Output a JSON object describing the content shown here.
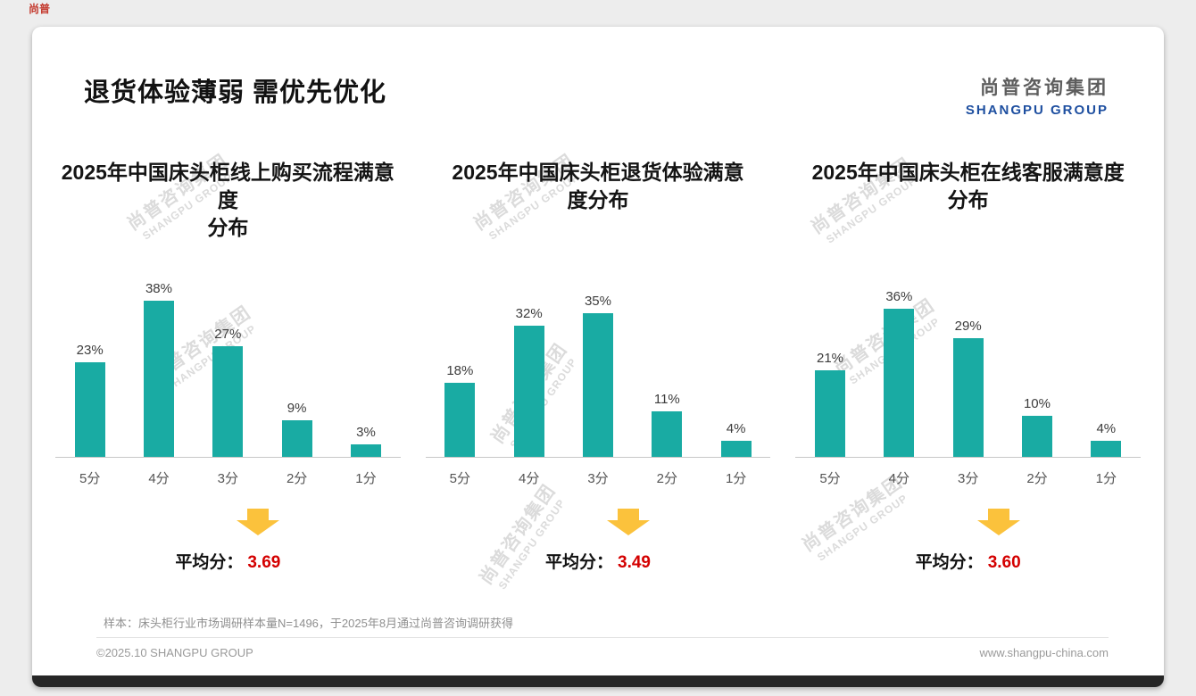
{
  "page": {
    "title": "退货体验薄弱 需优先优化",
    "logo": {
      "cn": "尚普咨询集团",
      "en": "SHANGPU GROUP"
    },
    "watermark": {
      "cn": "尚普咨询集团",
      "en": "SHANGPU GROUP"
    },
    "footnote": "样本：床头柜行业市场调研样本量N=1496，于2025年8月通过尚普咨询调研获得",
    "footer_left": "©2025.10 SHANGPU GROUP",
    "footer_right": "www.shangpu-china.com"
  },
  "colors": {
    "bar_teal": "#19aba3",
    "average_red": "#d40000",
    "arrow_yellow": "#fbc23c",
    "logo_blue": "#1e4fa0"
  },
  "chart_data": [
    {
      "type": "bar",
      "title": "2025年中国床头柜线上购买流程满意度\n分布",
      "categories": [
        "5分",
        "4分",
        "3分",
        "2分",
        "1分"
      ],
      "values": [
        23,
        38,
        27,
        9,
        3
      ],
      "value_labels": [
        "23%",
        "38%",
        "27%",
        "9%",
        "3%"
      ],
      "average_label": "平均分：",
      "average": "3.69",
      "ylim": [
        0,
        40
      ],
      "grid": false,
      "legend": false
    },
    {
      "type": "bar",
      "title": "2025年中国床头柜退货体验满意\n度分布",
      "categories": [
        "5分",
        "4分",
        "3分",
        "2分",
        "1分"
      ],
      "values": [
        18,
        32,
        35,
        11,
        4
      ],
      "value_labels": [
        "18%",
        "32%",
        "35%",
        "11%",
        "4%"
      ],
      "average_label": "平均分：",
      "average": "3.49",
      "ylim": [
        0,
        40
      ],
      "grid": false,
      "legend": false
    },
    {
      "type": "bar",
      "title": "2025年中国床头柜在线客服满意度\n分布",
      "categories": [
        "5分",
        "4分",
        "3分",
        "2分",
        "1分"
      ],
      "values": [
        21,
        36,
        29,
        10,
        4
      ],
      "value_labels": [
        "21%",
        "36%",
        "29%",
        "10%",
        "4%"
      ],
      "average_label": "平均分：",
      "average": "3.60",
      "ylim": [
        0,
        40
      ],
      "grid": false,
      "legend": false
    }
  ]
}
